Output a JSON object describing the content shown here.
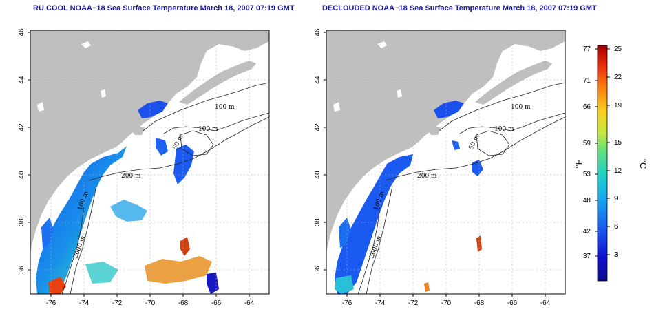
{
  "panels": [
    {
      "title": "RU COOL NOAA−18 Sea Surface Temperature March 18, 2007 07:19 GMT",
      "contour_labels": [
        "100 m",
        "100 m",
        "50 m",
        "200 m",
        "100 m",
        "2000 m"
      ]
    },
    {
      "title": "DECLOUDED NOAA−18 Sea Surface Temperature March 18, 2007 07:19 GMT",
      "contour_labels": [
        "100 m",
        "100 m",
        "50 m",
        "200 m",
        "100 m",
        "2000 m"
      ]
    }
  ],
  "axes": {
    "lon_ticks": [
      "-76",
      "-74",
      "-72",
      "-70",
      "-68",
      "-66",
      "-64"
    ],
    "lat_ticks": [
      "36",
      "38",
      "40",
      "42",
      "44",
      "46"
    ],
    "lon_range": [
      -77.2,
      -63.2
    ],
    "lat_range": [
      35,
      46
    ]
  },
  "colorbar": {
    "fahrenheit_ticks": [
      "77",
      "71",
      "66",
      "59",
      "53",
      "48",
      "42",
      "37"
    ],
    "celsius_ticks": [
      "25",
      "22",
      "19",
      "15",
      "12",
      "9",
      "6",
      "3"
    ],
    "fahrenheit_label": "°F",
    "celsius_label": "°C",
    "colors": [
      "#0a0a8a",
      "#1010d0",
      "#1a5af0",
      "#18a8ec",
      "#20d0c8",
      "#60e080",
      "#c8e840",
      "#f8d020",
      "#f88010",
      "#e82808",
      "#a00000"
    ]
  },
  "colors": {
    "land": "#bfbfbf",
    "title": "#1a1a9c",
    "grid": "#b0b0b0"
  }
}
